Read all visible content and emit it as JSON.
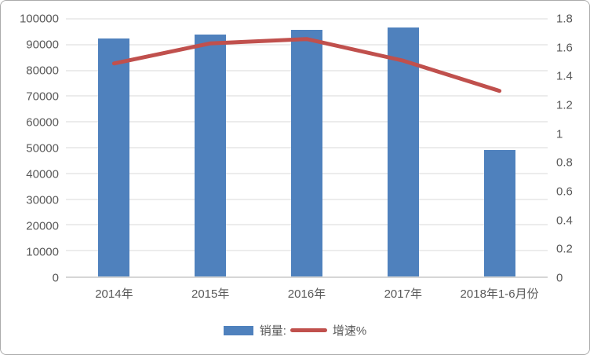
{
  "chart_data": {
    "type": "bar",
    "subtype": "combo-bar-line",
    "title": "",
    "xlabel": "",
    "ylabel": "",
    "grid": true,
    "legend_position": "bottom",
    "categories": [
      "2014年",
      "2015年",
      "2016年",
      "2017年",
      "2018年1-6月份"
    ],
    "series": [
      {
        "name": "销量:",
        "type": "bar",
        "axis": "left",
        "color": "#4f81bd",
        "values": [
          92300,
          93900,
          95600,
          96800,
          49000
        ]
      },
      {
        "name": "增速%",
        "type": "line",
        "axis": "right",
        "color": "#c0504d",
        "values": [
          1.49,
          1.63,
          1.66,
          1.51,
          1.3
        ]
      }
    ],
    "left_axis": {
      "min": 0,
      "max": 100000,
      "step": 10000,
      "tick_labels": [
        "0",
        "10000",
        "20000",
        "30000",
        "40000",
        "50000",
        "60000",
        "70000",
        "80000",
        "90000",
        "100000"
      ]
    },
    "right_axis": {
      "min": 0,
      "max": 1.8,
      "step": 0.2,
      "tick_labels": [
        "0",
        "0.2",
        "0.4",
        "0.6",
        "0.8",
        "1",
        "1.2",
        "1.4",
        "1.6",
        "1.8"
      ]
    }
  },
  "colors": {
    "bar": "#4f81bd",
    "line": "#c0504d",
    "gridline": "#d9d9d9",
    "axis_text": "#595959",
    "frame_border": "#ababab",
    "background": "#ffffff"
  }
}
